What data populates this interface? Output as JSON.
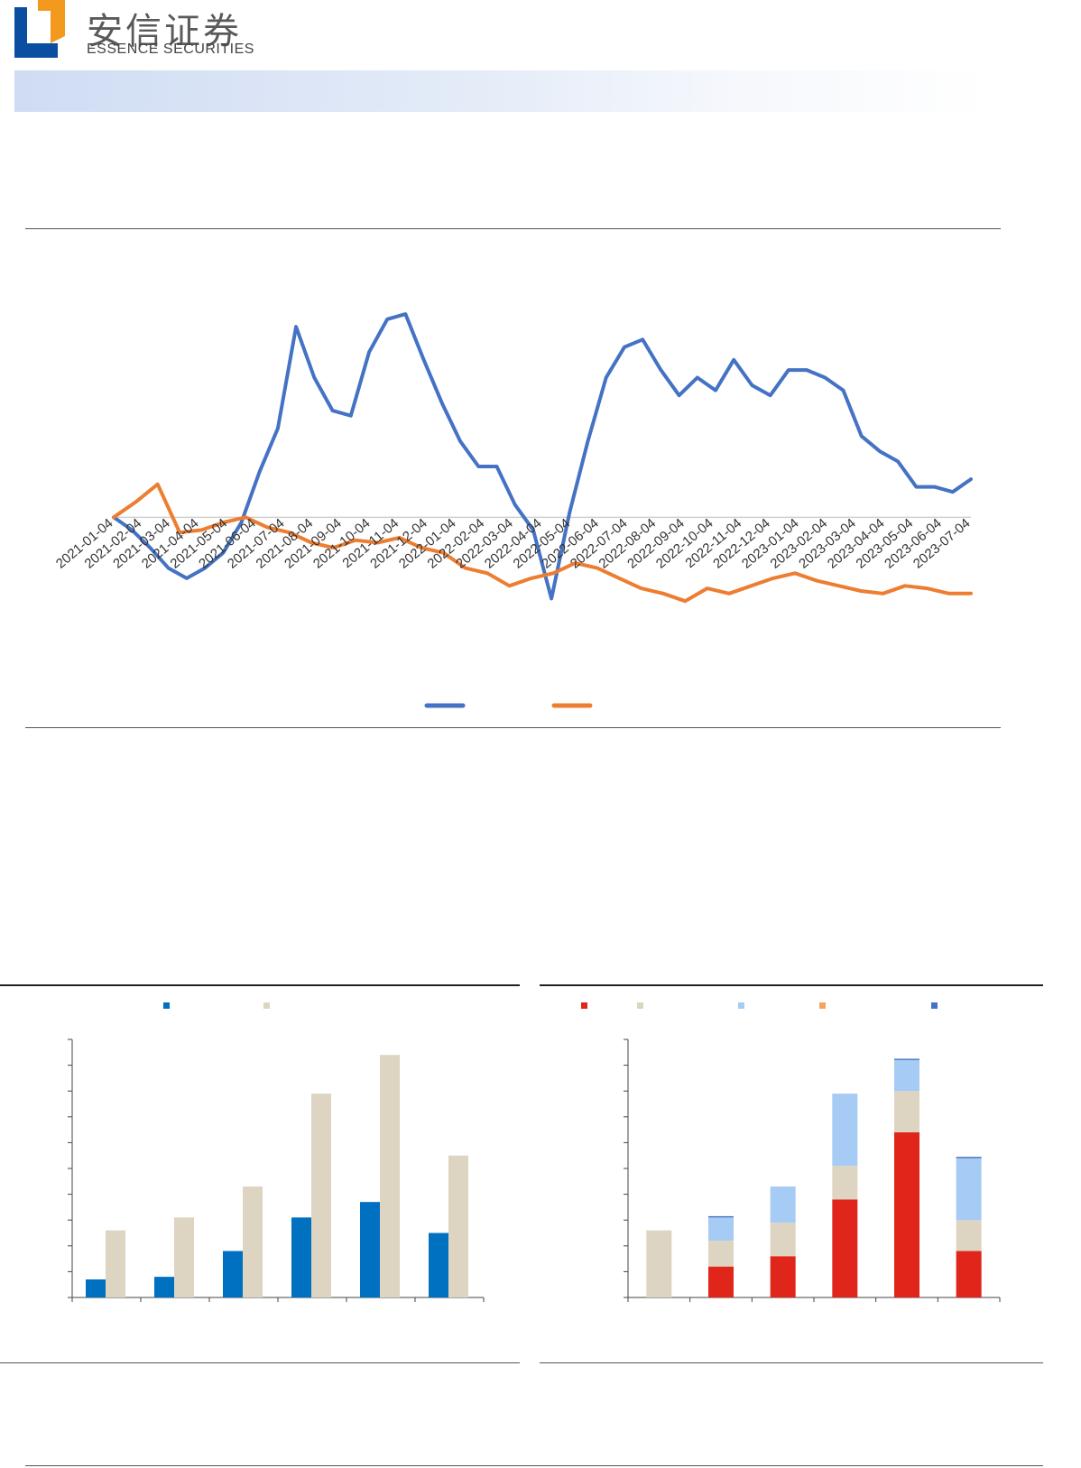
{
  "header": {
    "brand_cn": "安信证券",
    "brand_en": "ESSENCE SECURITIES"
  },
  "colors": {
    "blue_line": "#4472c4",
    "orange_line": "#ed7d31",
    "bar_blue": "#0070c0",
    "bar_beige": "#ddd5c2",
    "stack_red": "#e0251b",
    "stack_lightblue": "#a6cbf5",
    "stack_orange": "#f4a460",
    "stack_royal": "#4472c4",
    "logo_blue": "#0a4ea2",
    "logo_orange": "#f39a1e"
  },
  "chart_data": [
    {
      "type": "line",
      "x_tick_labels": [
        "2021-01-04",
        "2021-02-04",
        "2021-03-04",
        "2021-04-04",
        "2021-05-04",
        "2021-06-04",
        "2021-07-04",
        "2021-08-04",
        "2021-09-04",
        "2021-10-04",
        "2021-11-04",
        "2021-12-04",
        "2022-01-04",
        "2022-02-04",
        "2022-03-04",
        "2022-04-04",
        "2022-05-04",
        "2022-06-04",
        "2022-07-04",
        "2022-08-04",
        "2022-09-04",
        "2022-10-04",
        "2022-11-04",
        "2022-12-04",
        "2023-01-04",
        "2023-02-04",
        "2023-03-04",
        "2023-04-04",
        "2023-05-04",
        "2023-06-04",
        "2023-07-04"
      ],
      "baseline": 0,
      "ylim": [
        -0.45,
        0.9
      ],
      "grid": false,
      "legend_position": "bottom",
      "series": [
        {
          "color": "blue_line",
          "values": [
            0,
            -0.05,
            -0.12,
            -0.2,
            -0.24,
            -0.2,
            -0.14,
            -0.02,
            0.18,
            0.35,
            0.75,
            0.55,
            0.42,
            0.4,
            0.65,
            0.78,
            0.8,
            0.62,
            0.45,
            0.3,
            0.2,
            0.2,
            0.05,
            -0.05,
            -0.32,
            0.02,
            0.3,
            0.55,
            0.67,
            0.7,
            0.58,
            0.48,
            0.55,
            0.5,
            0.62,
            0.52,
            0.48,
            0.58,
            0.58,
            0.55,
            0.5,
            0.32,
            0.26,
            0.22,
            0.12,
            0.12,
            0.1,
            0.15
          ]
        },
        {
          "color": "orange_line",
          "values": [
            0,
            0.06,
            0.13,
            -0.06,
            -0.05,
            -0.02,
            0.0,
            -0.04,
            -0.06,
            -0.1,
            -0.12,
            -0.09,
            -0.1,
            -0.08,
            -0.12,
            -0.14,
            -0.2,
            -0.22,
            -0.27,
            -0.24,
            -0.22,
            -0.18,
            -0.2,
            -0.24,
            -0.28,
            -0.3,
            -0.33,
            -0.28,
            -0.3,
            -0.27,
            -0.24,
            -0.22,
            -0.25,
            -0.27,
            -0.29,
            -0.3,
            -0.27,
            -0.28,
            -0.3,
            -0.3
          ]
        }
      ]
    },
    {
      "type": "bar",
      "categories": [
        "",
        "",
        "",
        "",
        "",
        ""
      ],
      "legend_position": "top",
      "ylim": [
        0,
        10
      ],
      "series": [
        {
          "color": "bar_blue",
          "values": [
            0.7,
            0.8,
            1.8,
            3.1,
            3.7,
            2.5
          ]
        },
        {
          "color": "bar_beige",
          "values": [
            2.6,
            3.1,
            4.3,
            7.9,
            9.4,
            5.5
          ]
        }
      ]
    },
    {
      "type": "bar",
      "stacked": true,
      "categories": [
        "",
        "",
        "",
        "",
        "",
        ""
      ],
      "legend_position": "top",
      "ylim": [
        0,
        10
      ],
      "series": [
        {
          "color": "stack_red",
          "values": [
            0,
            1.2,
            1.6,
            3.8,
            6.4,
            1.8
          ]
        },
        {
          "color": "bar_beige",
          "values": [
            2.6,
            1.0,
            1.3,
            1.3,
            1.6,
            1.2
          ]
        },
        {
          "color": "stack_lightblue",
          "values": [
            0,
            0.9,
            1.4,
            2.8,
            1.2,
            2.4
          ]
        },
        {
          "color": "stack_orange",
          "values": [
            0,
            0,
            0,
            0,
            0,
            0
          ]
        },
        {
          "color": "stack_royal",
          "values": [
            0,
            0.05,
            0,
            0,
            0.05,
            0.05
          ]
        }
      ]
    }
  ]
}
